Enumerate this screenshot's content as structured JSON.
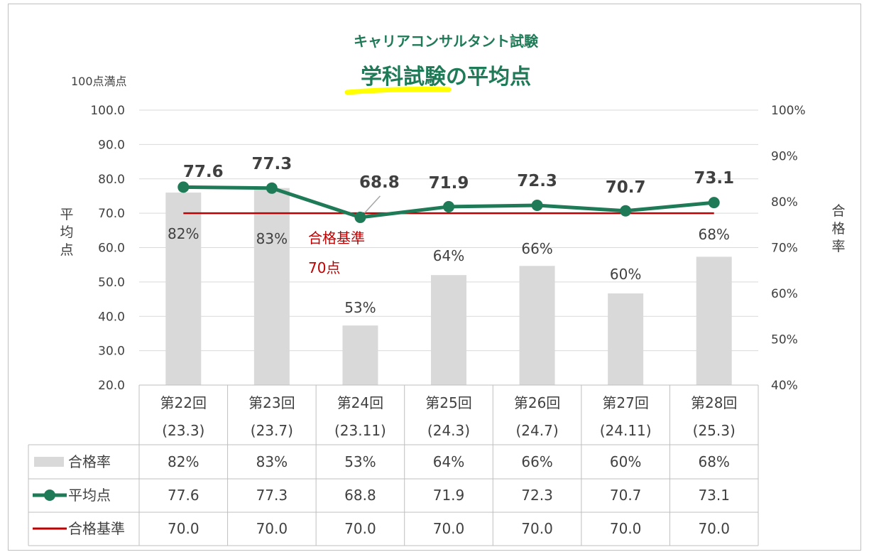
{
  "chart_data": {
    "type": "bar+line",
    "title_top": "キャリアコンサルタント試験",
    "title_main_highlight": "学科試験",
    "title_main_rest": "の平均点",
    "left_axis_unit": "100点満点",
    "left_axis_label": [
      "平",
      "均",
      "点"
    ],
    "right_axis_label": [
      "合",
      "格",
      "率"
    ],
    "left_ticks": [
      "100.0",
      "90.0",
      "80.0",
      "70.0",
      "60.0",
      "50.0",
      "40.0",
      "30.0",
      "20.0"
    ],
    "left_tick_values": [
      100,
      90,
      80,
      70,
      60,
      50,
      40,
      30,
      20
    ],
    "right_ticks": [
      "100%",
      "90%",
      "80%",
      "70%",
      "60%",
      "50%",
      "40%"
    ],
    "right_tick_values": [
      100,
      90,
      80,
      70,
      60,
      50,
      40
    ],
    "ylim_left": [
      20,
      100
    ],
    "ylim_right": [
      40,
      100
    ],
    "categories": [
      {
        "name": "第22回",
        "date": "(23.3)"
      },
      {
        "name": "第23回",
        "date": "(23.7)"
      },
      {
        "name": "第24回",
        "date": "(23.11)"
      },
      {
        "name": "第25回",
        "date": "(24.3)"
      },
      {
        "name": "第26回",
        "date": "(24.7)"
      },
      {
        "name": "第27回",
        "date": "(24.11)"
      },
      {
        "name": "第28回",
        "date": "(25.3)"
      }
    ],
    "series": [
      {
        "name": "合格率",
        "type": "bar",
        "axis": "right",
        "values": [
          82,
          83,
          53,
          64,
          66,
          60,
          68
        ],
        "labels": [
          "82%",
          "83%",
          "53%",
          "64%",
          "66%",
          "60%",
          "68%"
        ],
        "color": "#d9d9d9"
      },
      {
        "name": "平均点",
        "type": "line",
        "axis": "left",
        "values": [
          77.6,
          77.3,
          68.8,
          71.9,
          72.3,
          70.7,
          73.1
        ],
        "labels": [
          "77.6",
          "77.3",
          "68.8",
          "71.9",
          "72.3",
          "70.7",
          "73.1"
        ],
        "color": "#1e7a57"
      },
      {
        "name": "合格基準",
        "type": "line",
        "axis": "left",
        "values": [
          70,
          70,
          70,
          70,
          70,
          70,
          70
        ],
        "labels": [
          "70.0",
          "70.0",
          "70.0",
          "70.0",
          "70.0",
          "70.0",
          "70.0"
        ],
        "color": "#c00000"
      }
    ],
    "threshold_annotation": [
      "合格基準",
      "70点"
    ],
    "colors": {
      "accent": "#1e7a57",
      "highlight": "#ffff00",
      "threshold": "#c00000",
      "bar": "#d9d9d9",
      "text": "#404040",
      "grid": "#d9d9d9"
    }
  }
}
